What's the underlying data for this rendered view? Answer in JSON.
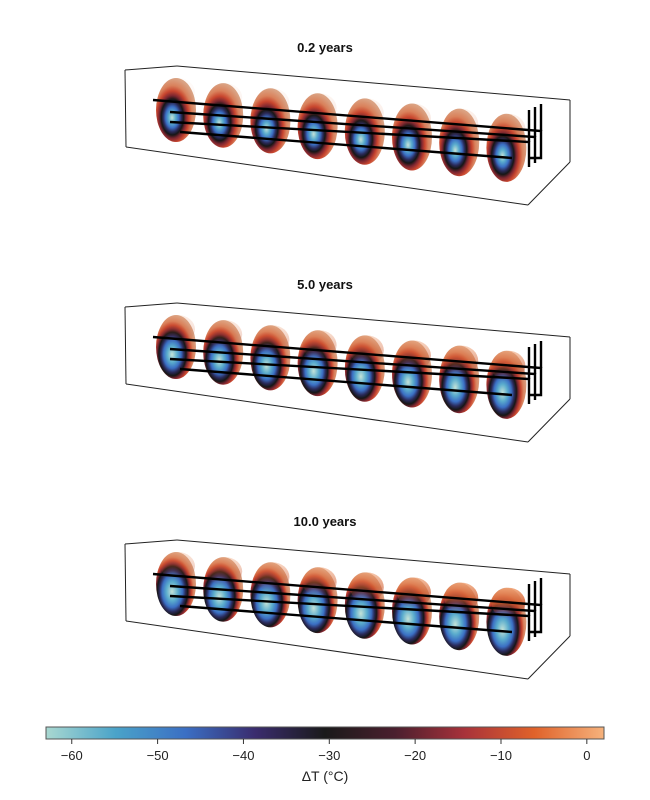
{
  "chart_data": {
    "type": "heatmap",
    "panels": [
      {
        "title": "0.2 years",
        "cold_spread": 0.25,
        "warm_cap": 0.15
      },
      {
        "title": "5.0 years",
        "cold_spread": 0.55,
        "warm_cap": 0.55
      },
      {
        "title": "10.0 years",
        "cold_spread": 0.75,
        "warm_cap": 0.85
      }
    ],
    "slices_per_panel": 8,
    "colorbar": {
      "label": "ΔT (°C)",
      "range": [
        -63,
        2
      ],
      "ticks": [
        -60,
        -50,
        -40,
        -30,
        -20,
        -10,
        0
      ],
      "tick_labels": [
        "−60",
        "−50",
        "−40",
        "−30",
        "−20",
        "−10",
        "0"
      ],
      "colormap_stops": [
        "#a9d8d1",
        "#4aa3c9",
        "#3b6fc4",
        "#3a2c6e",
        "#1a1a1a",
        "#4a1f2e",
        "#a8323a",
        "#e0622a",
        "#f6b27c"
      ]
    }
  }
}
